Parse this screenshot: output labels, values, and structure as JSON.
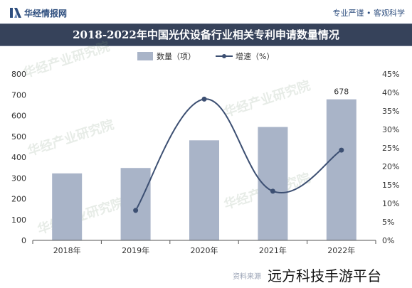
{
  "header": {
    "brand": "华经情报网",
    "slogan": "专业严谨 • 客观科学"
  },
  "watermark": "华经产业研究院",
  "footer": {
    "source_prefix": "资料来源",
    "overlay": "远方科技手游平台"
  },
  "colors": {
    "bar": "#a9b4c8",
    "line": "#3c4f72",
    "title_bg": "#36425a"
  },
  "chart_data": {
    "type": "bar",
    "title": "2018-2022年中国光伏设备行业相关专利申请数量情况",
    "categories": [
      "2018年",
      "2019年",
      "2020年",
      "2021年",
      "2022年"
    ],
    "series": [
      {
        "name": "数量（项）",
        "type": "bar",
        "axis": "left",
        "values": [
          322,
          348,
          481,
          545,
          678
        ]
      },
      {
        "name": "增速（%）",
        "type": "line",
        "axis": "right",
        "values": [
          null,
          8.1,
          38.2,
          13.3,
          24.4
        ]
      }
    ],
    "data_labels": [
      {
        "series": 0,
        "index": 4,
        "text": "678"
      }
    ],
    "ylim": [
      0,
      800
    ],
    "yticks": [
      "0",
      "100",
      "200",
      "300",
      "400",
      "500",
      "600",
      "700",
      "800"
    ],
    "y2lim": [
      0,
      45
    ],
    "y2ticks": [
      "0%",
      "5%",
      "10%",
      "15%",
      "20%",
      "25%",
      "30%",
      "35%",
      "40%",
      "45%"
    ],
    "legend_position": "top",
    "grid": false
  }
}
